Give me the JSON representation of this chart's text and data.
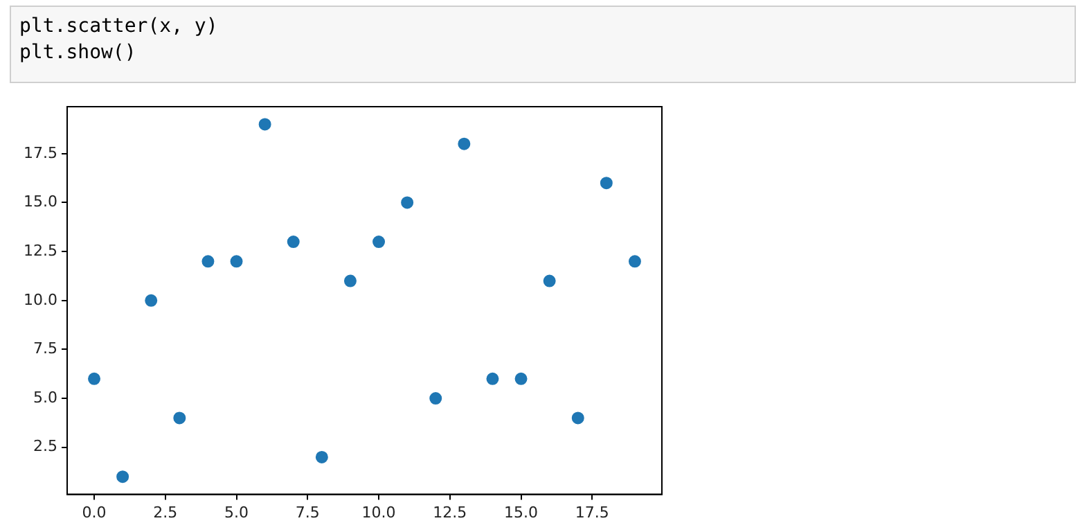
{
  "chart_data": {
    "type": "scatter",
    "annotations": [
      "plt.scatter(x, y)\nplt.show()"
    ],
    "x": [
      0,
      1,
      2,
      3,
      4,
      5,
      6,
      7,
      8,
      9,
      10,
      11,
      12,
      13,
      14,
      15,
      16,
      17,
      18,
      19
    ],
    "values": [
      6,
      1,
      10,
      4,
      12,
      12,
      19,
      13,
      2,
      11,
      13,
      15,
      5,
      18,
      6,
      6,
      11,
      4,
      16,
      12
    ],
    "color": "#1f77b4",
    "marker": "circle",
    "grid": false,
    "legend": false,
    "xlim": [
      -0.95,
      19.95
    ],
    "ylim": [
      0.1,
      19.9
    ],
    "xticks": [
      {
        "value": 0,
        "label": "0.0"
      },
      {
        "value": 2.5,
        "label": "2.5"
      },
      {
        "value": 5,
        "label": "5.0"
      },
      {
        "value": 7.5,
        "label": "7.5"
      },
      {
        "value": 10,
        "label": "10.0"
      },
      {
        "value": 12.5,
        "label": "12.5"
      },
      {
        "value": 15,
        "label": "15.0"
      },
      {
        "value": 17.5,
        "label": "17.5"
      }
    ],
    "yticks": [
      {
        "value": 2.5,
        "label": "2.5"
      },
      {
        "value": 5,
        "label": "5.0"
      },
      {
        "value": 7.5,
        "label": "7.5"
      },
      {
        "value": 10,
        "label": "10.0"
      },
      {
        "value": 12.5,
        "label": "12.5"
      },
      {
        "value": 15,
        "label": "15.0"
      },
      {
        "value": 17.5,
        "label": "17.5"
      }
    ]
  }
}
